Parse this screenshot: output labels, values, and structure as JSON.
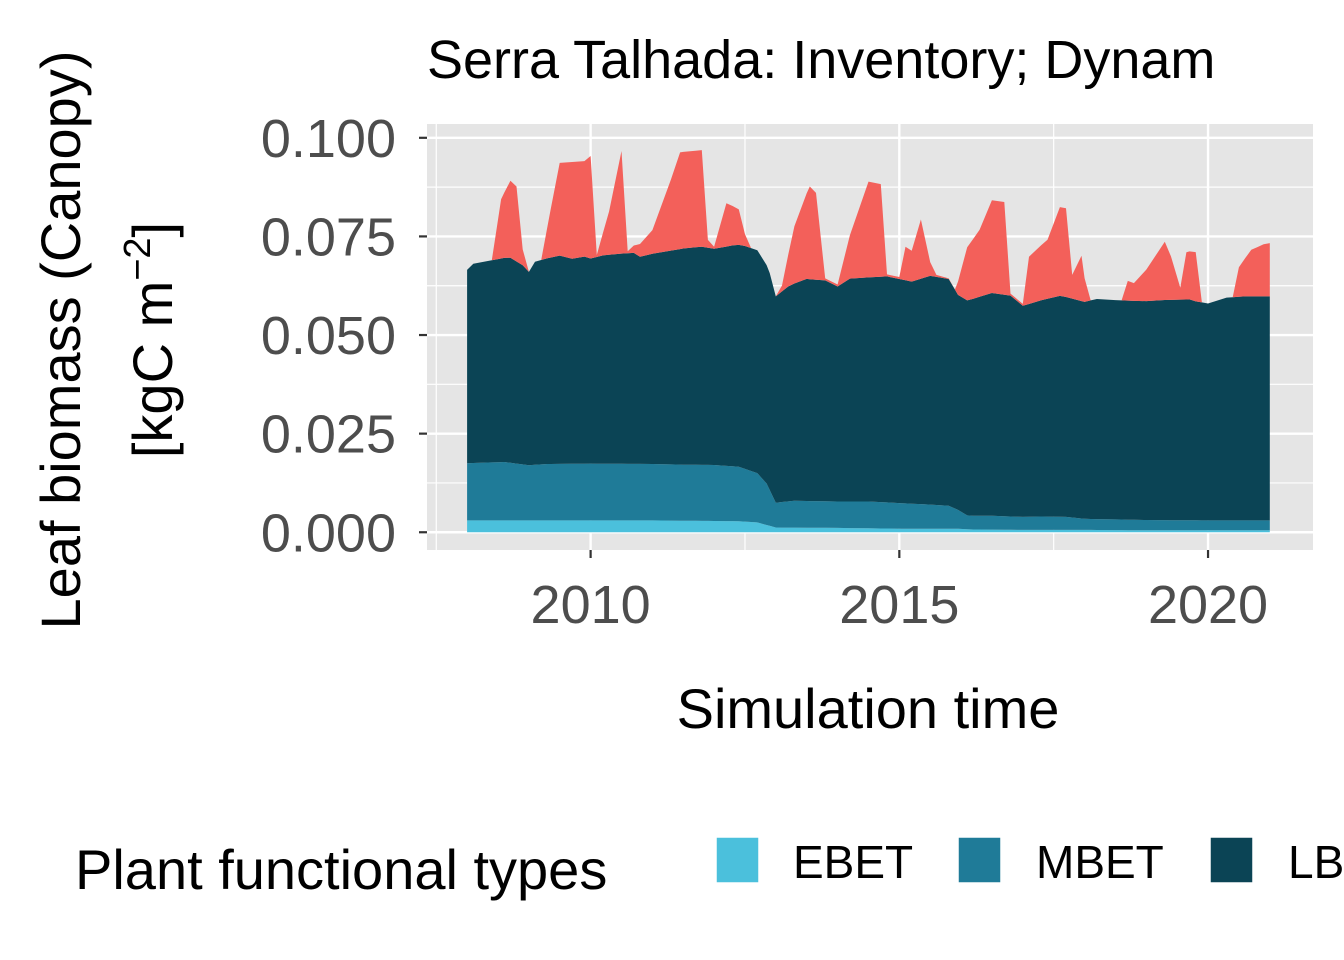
{
  "chart_data": {
    "type": "area",
    "title": "Serra Talhada: Inventory; Dynam",
    "xlabel": "Simulation time",
    "ylabel_line1": "Leaf biomass (Canopy)",
    "ylabel_line2_prefix": "[kgC m",
    "ylabel_line2_sup": "−2",
    "ylabel_line2_suffix": "]",
    "xlim": [
      2007.35,
      2021.7
    ],
    "ylim": [
      -0.0045,
      0.1035
    ],
    "x_ticks": [
      2010,
      2015,
      2020
    ],
    "x_tick_labels": [
      "2010",
      "2015",
      "2020"
    ],
    "y_ticks": [
      0,
      0.025,
      0.05,
      0.075,
      0.1
    ],
    "y_tick_labels": [
      "0.000",
      "0.025",
      "0.050",
      "0.075",
      "0.100"
    ],
    "stacked": true,
    "grid": true,
    "legend_position": "bottom",
    "legend_title": "Plant functional types",
    "colors": {
      "panel_bg": "#e5e5e5",
      "grid": "#ffffff",
      "EBET": "#4bc0dc",
      "MBET": "#1f7b98",
      "LBET": "#0b4455",
      "top": "#f3605a"
    },
    "series": [
      {
        "name": "EBET",
        "values": [
          [
            2008.0,
            0.003
          ],
          [
            2009.0,
            0.003
          ],
          [
            2010.0,
            0.003
          ],
          [
            2011.0,
            0.003
          ],
          [
            2012.4,
            0.0028
          ],
          [
            2012.7,
            0.0025
          ],
          [
            2013.0,
            0.0012
          ],
          [
            2014.0,
            0.0011
          ],
          [
            2015.0,
            0.0009
          ],
          [
            2015.9,
            0.0009
          ],
          [
            2016.2,
            0.0007
          ],
          [
            2017.0,
            0.0006
          ],
          [
            2018.0,
            0.0006
          ],
          [
            2019.0,
            0.0005
          ],
          [
            2020.0,
            0.0005
          ],
          [
            2021.0,
            0.0005
          ]
        ]
      },
      {
        "name": "MBET",
        "values": [
          [
            2008.0,
            0.0145
          ],
          [
            2008.6,
            0.0148
          ],
          [
            2009.0,
            0.014
          ],
          [
            2009.3,
            0.0143
          ],
          [
            2010.0,
            0.0144
          ],
          [
            2011.0,
            0.0143
          ],
          [
            2011.5,
            0.0142
          ],
          [
            2012.0,
            0.0142
          ],
          [
            2012.4,
            0.0138
          ],
          [
            2012.7,
            0.0125
          ],
          [
            2012.85,
            0.0105
          ],
          [
            2013.0,
            0.0063
          ],
          [
            2013.3,
            0.0068
          ],
          [
            2014.0,
            0.0067
          ],
          [
            2014.5,
            0.0068
          ],
          [
            2015.0,
            0.0065
          ],
          [
            2015.4,
            0.0062
          ],
          [
            2015.8,
            0.0058
          ],
          [
            2015.95,
            0.0048
          ],
          [
            2016.1,
            0.0035
          ],
          [
            2016.5,
            0.0035
          ],
          [
            2017.0,
            0.0033
          ],
          [
            2017.3,
            0.0034
          ],
          [
            2017.7,
            0.0033
          ],
          [
            2018.0,
            0.0028
          ],
          [
            2019.0,
            0.0026
          ],
          [
            2020.0,
            0.0025
          ],
          [
            2021.0,
            0.0025
          ]
        ]
      },
      {
        "name": "LBET",
        "values": [
          [
            2008.0,
            0.049
          ],
          [
            2008.1,
            0.0505
          ],
          [
            2008.5,
            0.0515
          ],
          [
            2008.7,
            0.052
          ],
          [
            2008.9,
            0.0505
          ],
          [
            2009.0,
            0.049
          ],
          [
            2009.1,
            0.0515
          ],
          [
            2009.5,
            0.0528
          ],
          [
            2009.7,
            0.052
          ],
          [
            2009.9,
            0.0525
          ],
          [
            2010.0,
            0.052
          ],
          [
            2010.2,
            0.0528
          ],
          [
            2010.5,
            0.0533
          ],
          [
            2010.7,
            0.0535
          ],
          [
            2010.8,
            0.0525
          ],
          [
            2011.0,
            0.0533
          ],
          [
            2011.5,
            0.0548
          ],
          [
            2011.8,
            0.0553
          ],
          [
            2012.0,
            0.0548
          ],
          [
            2012.3,
            0.056
          ],
          [
            2012.5,
            0.0565
          ],
          [
            2012.7,
            0.0565
          ],
          [
            2012.9,
            0.055
          ],
          [
            2013.0,
            0.0523
          ],
          [
            2013.2,
            0.0545
          ],
          [
            2013.5,
            0.0563
          ],
          [
            2013.8,
            0.056
          ],
          [
            2014.0,
            0.0545
          ],
          [
            2014.2,
            0.0565
          ],
          [
            2014.5,
            0.0568
          ],
          [
            2014.8,
            0.0573
          ],
          [
            2015.0,
            0.0568
          ],
          [
            2015.2,
            0.0563
          ],
          [
            2015.5,
            0.058
          ],
          [
            2015.8,
            0.0575
          ],
          [
            2015.95,
            0.0545
          ],
          [
            2016.1,
            0.0545
          ],
          [
            2016.5,
            0.0565
          ],
          [
            2016.8,
            0.056
          ],
          [
            2017.0,
            0.0535
          ],
          [
            2017.3,
            0.0548
          ],
          [
            2017.6,
            0.056
          ],
          [
            2017.8,
            0.0555
          ],
          [
            2018.0,
            0.055
          ],
          [
            2018.2,
            0.0558
          ],
          [
            2018.5,
            0.0556
          ],
          [
            2018.8,
            0.0555
          ],
          [
            2019.0,
            0.0555
          ],
          [
            2019.3,
            0.0558
          ],
          [
            2019.7,
            0.056
          ],
          [
            2019.8,
            0.0555
          ],
          [
            2020.0,
            0.055
          ],
          [
            2020.3,
            0.0565
          ],
          [
            2020.6,
            0.0568
          ],
          [
            2020.9,
            0.0568
          ],
          [
            2021.0,
            0.0568
          ]
        ]
      },
      {
        "name": "",
        "values": [
          [
            2008.0,
            0
          ],
          [
            2008.4,
            0
          ],
          [
            2008.55,
            0.015
          ],
          [
            2008.7,
            0.0195
          ],
          [
            2008.8,
            0.019
          ],
          [
            2008.9,
            0.004
          ],
          [
            2009.0,
            0
          ],
          [
            2009.2,
            0
          ],
          [
            2009.35,
            0.012
          ],
          [
            2009.5,
            0.0235
          ],
          [
            2009.7,
            0.0245
          ],
          [
            2009.9,
            0.0242
          ],
          [
            2010.0,
            0.026
          ],
          [
            2010.1,
            0.0005
          ],
          [
            2010.3,
            0.011
          ],
          [
            2010.5,
            0.026
          ],
          [
            2010.6,
            0.0005
          ],
          [
            2011.0,
            0.006
          ],
          [
            2011.3,
            0.018
          ],
          [
            2011.45,
            0.0245
          ],
          [
            2011.7,
            0.0245
          ],
          [
            2011.8,
            0.0245
          ],
          [
            2011.9,
            0.002
          ],
          [
            2012.0,
            0.0005
          ],
          [
            2012.2,
            0.011
          ],
          [
            2012.4,
            0.009
          ],
          [
            2012.5,
            0.003
          ],
          [
            2012.6,
            0
          ],
          [
            2013.0,
            0
          ],
          [
            2013.1,
            0.0015
          ],
          [
            2013.3,
            0.0145
          ],
          [
            2013.55,
            0.0235
          ],
          [
            2013.65,
            0.022
          ],
          [
            2013.8,
            0.0005
          ],
          [
            2014.0,
            0.0005
          ],
          [
            2014.2,
            0.011
          ],
          [
            2014.5,
            0.0243
          ],
          [
            2014.7,
            0.0235
          ],
          [
            2014.8,
            0.0005
          ],
          [
            2015.0,
            0.0005
          ],
          [
            2015.1,
            0.0085
          ],
          [
            2015.2,
            0.0078
          ],
          [
            2015.35,
            0.015
          ],
          [
            2015.5,
            0.0035
          ],
          [
            2015.6,
            0.0005
          ],
          [
            2015.9,
            0.0
          ],
          [
            2016.1,
            0.0135
          ],
          [
            2016.3,
            0.017
          ],
          [
            2016.5,
            0.0235
          ],
          [
            2016.7,
            0.0235
          ],
          [
            2016.8,
            0.0005
          ],
          [
            2017.0,
            0.0005
          ],
          [
            2017.1,
            0.012
          ],
          [
            2017.4,
            0.015
          ],
          [
            2017.6,
            0.0225
          ],
          [
            2017.7,
            0.0225
          ],
          [
            2017.8,
            0.006
          ],
          [
            2017.95,
            0.0115
          ],
          [
            2018.0,
            0.006
          ],
          [
            2018.1,
            0.0
          ],
          [
            2018.6,
            0.0
          ],
          [
            2018.7,
            0.005
          ],
          [
            2018.8,
            0.0045
          ],
          [
            2019.0,
            0.008
          ],
          [
            2019.2,
            0.0125
          ],
          [
            2019.3,
            0.0148
          ],
          [
            2019.4,
            0.011
          ],
          [
            2019.55,
            0.003
          ],
          [
            2019.65,
            0.012
          ],
          [
            2019.8,
            0.0125
          ],
          [
            2019.9,
            0.0
          ],
          [
            2020.4,
            0.0
          ],
          [
            2020.5,
            0.0075
          ],
          [
            2020.7,
            0.0118
          ],
          [
            2020.8,
            0.0125
          ],
          [
            2020.9,
            0.0132
          ],
          [
            2021.0,
            0.0135
          ]
        ]
      }
    ],
    "legend": [
      {
        "label": "EBET",
        "color": "#4bc0dc"
      },
      {
        "label": "MBET",
        "color": "#1f7b98"
      },
      {
        "label": "LB",
        "color": "#0b4455"
      }
    ]
  }
}
